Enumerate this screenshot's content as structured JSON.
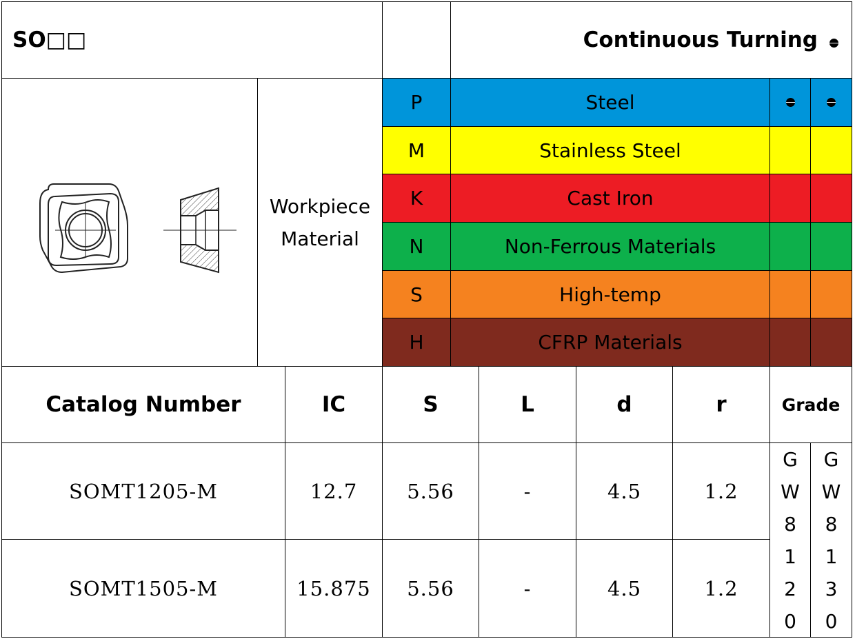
{
  "header": {
    "title": "SO□□",
    "operation": "Continuous Turning"
  },
  "workpiece_label": [
    "Workpiece",
    "Material"
  ],
  "materials": [
    {
      "code": "P",
      "name": "Steel",
      "color": "#0095DA",
      "grade_1": "used",
      "grade_2": "used"
    },
    {
      "code": "M",
      "name": "Stainless Steel",
      "color": "#FFFF00",
      "grade_1": "",
      "grade_2": ""
    },
    {
      "code": "K",
      "name": "Cast Iron",
      "color": "#ED1C24",
      "grade_1": "",
      "grade_2": ""
    },
    {
      "code": "N",
      "name": "Non-Ferrous Materials",
      "color": "#0DB04B",
      "grade_1": "",
      "grade_2": ""
    },
    {
      "code": "S",
      "name": "High-temp",
      "color": "#F5821F",
      "grade_1": "",
      "grade_2": ""
    },
    {
      "code": "H",
      "name": "CFRP Materials",
      "color": "#7F2A1E",
      "grade_1": "",
      "grade_2": ""
    }
  ],
  "table": {
    "columns": [
      "Catalog Number",
      "IC",
      "S",
      "L",
      "d",
      "r",
      "Grade"
    ],
    "rows": [
      {
        "catalog": "SOMT1205-M",
        "ic": "12.7",
        "s": "5.56",
        "l": "-",
        "d": "4.5",
        "r": "1.2"
      },
      {
        "catalog": "SOMT1505-M",
        "ic": "15.875",
        "s": "5.56",
        "l": "-",
        "d": "4.5",
        "r": "1.2"
      }
    ],
    "grades": [
      [
        "G",
        "W",
        "8",
        "1",
        "2",
        "0"
      ],
      [
        "G",
        "W",
        "8",
        "1",
        "3",
        "0"
      ]
    ]
  },
  "icons": {
    "insert_drawing": "insert-top-and-side-view",
    "usage_marker": "half-filled-circle-icon"
  }
}
